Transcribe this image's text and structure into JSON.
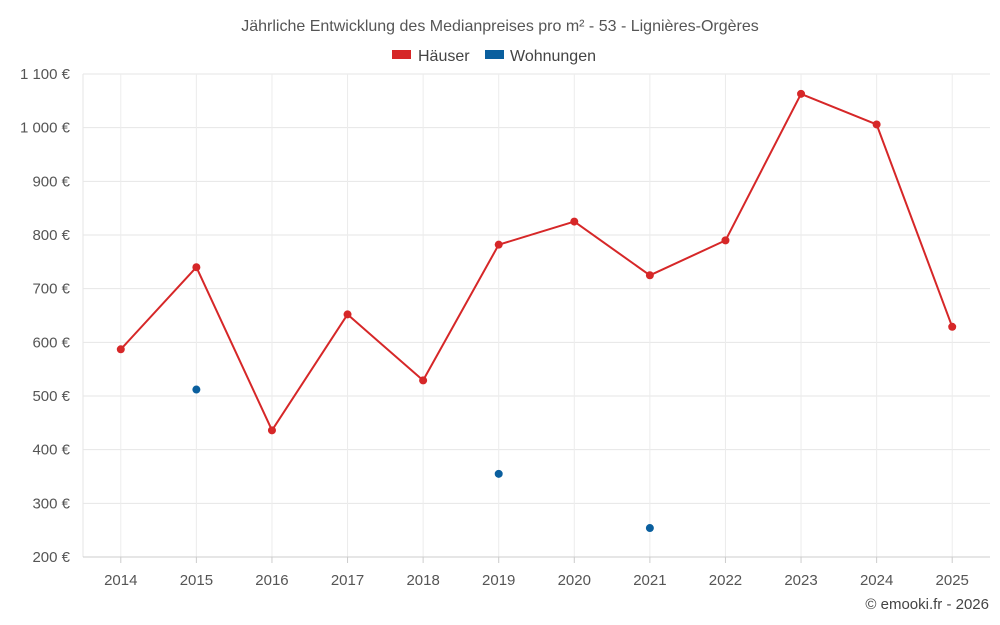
{
  "chart_data": {
    "type": "line",
    "title": "Jährliche Entwicklung des Medianpreises pro m² - 53 - Lignières-Orgères",
    "categories": [
      "2014",
      "2015",
      "2016",
      "2017",
      "2018",
      "2019",
      "2020",
      "2021",
      "2022",
      "2023",
      "2024",
      "2025"
    ],
    "y_ticks": [
      "200 €",
      "300 €",
      "400 €",
      "500 €",
      "600 €",
      "700 €",
      "800 €",
      "900 €",
      "1 000 €",
      "1 100 €"
    ],
    "ylim": [
      200,
      1100
    ],
    "grid": true,
    "legend_position": "top-center",
    "series": [
      {
        "name": "Häuser",
        "color": "#d62728",
        "show_line": true,
        "values": [
          587,
          740,
          436,
          652,
          529,
          782,
          825,
          725,
          790,
          1063,
          1006,
          629
        ]
      },
      {
        "name": "Wohnungen",
        "color": "#0a5f9e",
        "show_line": false,
        "values": [
          null,
          512,
          null,
          null,
          null,
          355,
          null,
          254,
          null,
          null,
          null,
          null
        ]
      }
    ]
  },
  "credit": "© emooki.fr - 2026"
}
